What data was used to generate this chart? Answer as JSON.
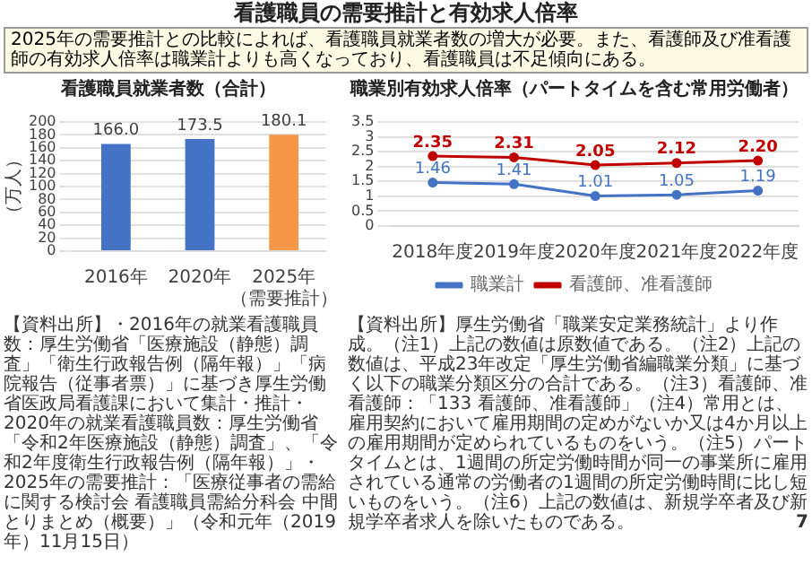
{
  "chart_data": [
    {
      "type": "bar",
      "title": "看護職員就業者数（合計）",
      "ylabel": "（万人）",
      "annotations": [
        "看護職員の需要推計と有効求人倍率",
        "2025年の需要推計との比較によれば、看護職員就業者数の増大が必要。また、看護師及び准看護師の有効求人倍率は職業計よりも高くなっており、看護職員は不足傾向にある。",
        "【資料出所】",
        "・2016年の就業看護職員数：厚生労働省「医療施設（静態）調査」「衛生行政報告例（隔年報）」「病院報告（従事者票）」に基づき厚生労働省医政局看護課において集計・推計",
        "・2020年の就業看護職員数：厚生労働省「令和2年医療施設（静態）調査」、「令和2年度衛生行政報告例（隔年報）」",
        "・2025年の需要推計：「医療従事者の需給に関する検討会 看護職員需給分科会 中間とりまとめ（概要）」（令和元年（2019年）11月15日）"
      ],
      "categories": [
        "2016年",
        "2020年",
        "2025年（需要推計）"
      ],
      "values": [
        166.0,
        173.5,
        180.1
      ],
      "value_labels": [
        "166.0",
        "173.5",
        "180.1"
      ],
      "colors": [
        "#4472c4",
        "#4472c4",
        "#f79646"
      ],
      "ylim": [
        0,
        200
      ],
      "yticks": [
        0,
        20,
        40,
        60,
        80,
        100,
        120,
        140,
        160,
        180,
        200
      ],
      "grid": "y"
    },
    {
      "type": "line",
      "title": "職業別有効求人倍率（パートタイムを含む常用労働者）",
      "annotations": [
        "【資料出所】厚生労働省「職業安定業務統計」より作成。",
        "（注1）上記の数値は原数値である。",
        "（注2）上記の数値は、平成23年改定「厚生労働省編職業分類」に基づく以下の職業分類区分の合計である。",
        "（注3）看護師、准看護師：「133 看護師、准看護師」",
        "（注4）常用とは、雇用契約において雇用期間の定めがないか又は4か月以上の雇用期間が定められているものをいう。",
        "（注5）パートタイムとは、1週間の所定労働時間が同一の事業所に雇用されている通常の労働者の1週間の所定労働時間に比し短いものをいう。",
        "（注6）上記の数値は、新規学卒者及び新規学卒者求人を除いたものである。",
        "7"
      ],
      "categories": [
        "2018年度",
        "2019年度",
        "2020年度",
        "2021年度",
        "2022年度"
      ],
      "series": [
        {
          "name": "職業計",
          "color": "#4472c4",
          "values": [
            1.46,
            1.41,
            1.01,
            1.05,
            1.19
          ],
          "value_labels": [
            "1.46",
            "1.41",
            "1.01",
            "1.05",
            "1.19"
          ]
        },
        {
          "name": "看護師、准看護師",
          "color": "#c00000",
          "values": [
            2.35,
            2.31,
            2.05,
            2.12,
            2.2
          ],
          "value_labels": [
            "2.35",
            "2.31",
            "2.05",
            "2.12",
            "2.20"
          ]
        }
      ],
      "ylim": [
        0,
        3.5
      ],
      "yticks": [
        0,
        0.5,
        1,
        1.5,
        2,
        2.5,
        3,
        3.5
      ],
      "grid": "y",
      "legend": "bottom",
      "marker": "circle",
      "line_style": "solid"
    }
  ]
}
